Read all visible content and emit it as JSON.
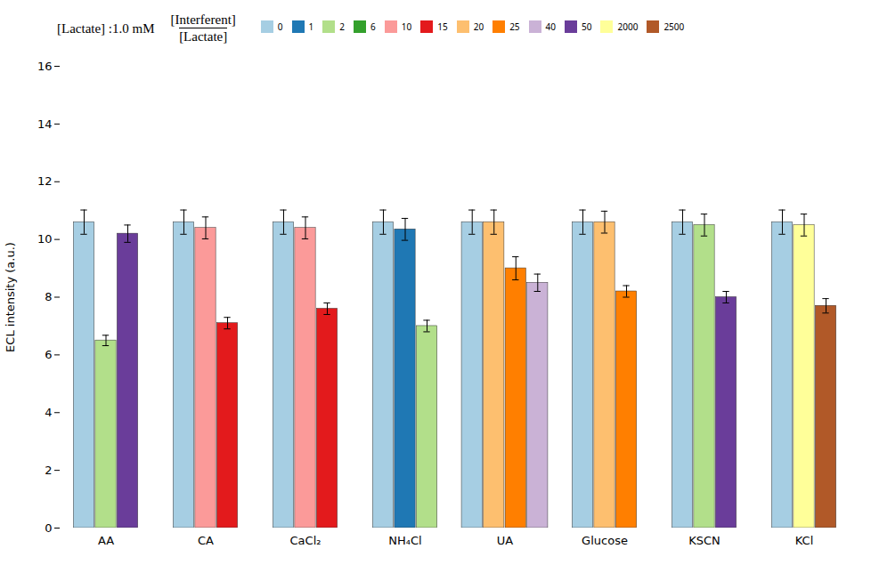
{
  "chart_data": {
    "type": "bar",
    "ylabel": "ECL intensity (a.u.)",
    "categories": [
      "AA",
      "CA",
      "CaCl₂",
      "NH₄Cl",
      "UA",
      "Glucose",
      "KSCN",
      "KCl"
    ],
    "series": [
      {
        "name": "0",
        "values": [
          10.6,
          10.6,
          10.6,
          10.6,
          10.6,
          10.6,
          10.6,
          10.6
        ],
        "errors": [
          0.42,
          0.42,
          0.42,
          0.42,
          0.42,
          0.42,
          0.42,
          0.42
        ]
      },
      {
        "name": "1",
        "values": [
          null,
          null,
          null,
          10.35,
          null,
          null,
          null,
          null
        ],
        "errors": [
          null,
          null,
          null,
          0.38,
          null,
          null,
          null,
          null
        ]
      },
      {
        "name": "2",
        "values": [
          6.5,
          null,
          null,
          7.0,
          null,
          null,
          10.5,
          null
        ],
        "errors": [
          0.18,
          null,
          null,
          0.2,
          null,
          null,
          0.38,
          null
        ]
      },
      {
        "name": "6",
        "values": [
          null,
          null,
          null,
          null,
          null,
          null,
          null,
          null
        ],
        "errors": [
          null,
          null,
          null,
          null,
          null,
          null,
          null,
          null
        ]
      },
      {
        "name": "10",
        "values": [
          null,
          10.4,
          10.4,
          null,
          null,
          null,
          null,
          null
        ],
        "errors": [
          null,
          0.38,
          0.38,
          null,
          null,
          null,
          null,
          null
        ]
      },
      {
        "name": "15",
        "values": [
          null,
          7.1,
          7.6,
          null,
          null,
          null,
          null,
          null
        ],
        "errors": [
          null,
          0.2,
          0.2,
          null,
          null,
          null,
          null,
          null
        ]
      },
      {
        "name": "20",
        "values": [
          null,
          null,
          null,
          null,
          10.6,
          10.6,
          null,
          null
        ],
        "errors": [
          null,
          null,
          null,
          null,
          0.42,
          0.38,
          null,
          null
        ]
      },
      {
        "name": "25",
        "values": [
          null,
          null,
          null,
          null,
          9.0,
          8.2,
          null,
          null
        ],
        "errors": [
          null,
          null,
          null,
          null,
          0.4,
          0.2,
          null,
          null
        ]
      },
      {
        "name": "40",
        "values": [
          null,
          null,
          null,
          null,
          8.5,
          null,
          null,
          null
        ],
        "errors": [
          null,
          null,
          null,
          null,
          0.3,
          null,
          null,
          null
        ]
      },
      {
        "name": "50",
        "values": [
          10.2,
          null,
          null,
          null,
          null,
          null,
          8.0,
          null
        ],
        "errors": [
          0.3,
          null,
          null,
          null,
          null,
          null,
          0.2,
          null
        ]
      },
      {
        "name": "2000",
        "values": [
          null,
          null,
          null,
          null,
          null,
          null,
          null,
          10.5
        ],
        "errors": [
          null,
          null,
          null,
          null,
          null,
          null,
          null,
          0.38
        ]
      },
      {
        "name": "2500",
        "values": [
          null,
          null,
          null,
          null,
          null,
          null,
          null,
          7.7
        ],
        "errors": [
          null,
          null,
          null,
          null,
          null,
          null,
          null,
          0.25
        ]
      }
    ],
    "annotations": [
      "[Lactate] :1.0 mM",
      "[Interferent]",
      "[Lactate]"
    ],
    "ylim": [
      0,
      16
    ],
    "yticks": [
      0,
      2,
      4,
      6,
      8,
      10,
      12,
      14,
      16
    ],
    "grid": false,
    "legend": "upper center"
  }
}
